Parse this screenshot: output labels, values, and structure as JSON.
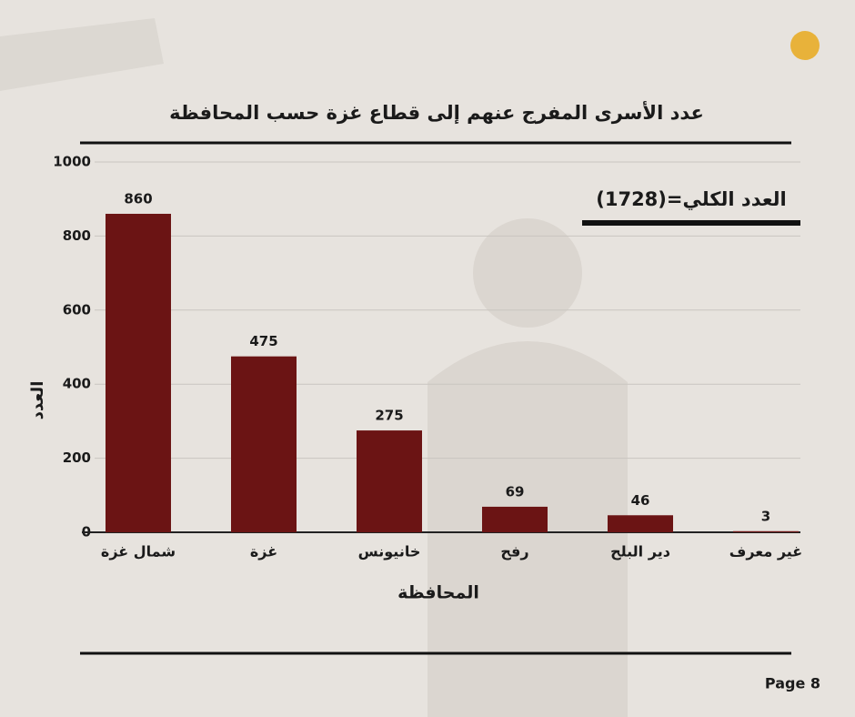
{
  "chart_data": {
    "type": "bar",
    "title": "عدد الأسرى المفرج عنهم إلى قطاع غزة  حسب المحافظة",
    "annotation": "العدد الكلي=(1728)",
    "x_label": "المحافظة",
    "y_label": "العدد",
    "categories": [
      "شمال غزة",
      "غزة",
      "خانيونس",
      "رفح",
      "دير البلح",
      "غير معرف"
    ],
    "values": [
      860,
      475,
      275,
      69,
      46,
      3
    ],
    "color": "#6b1414",
    "ylim": [
      0,
      1000
    ],
    "yticks": [
      0,
      200,
      400,
      600,
      800,
      1000
    ],
    "grid": true
  },
  "footer": "Page 8"
}
